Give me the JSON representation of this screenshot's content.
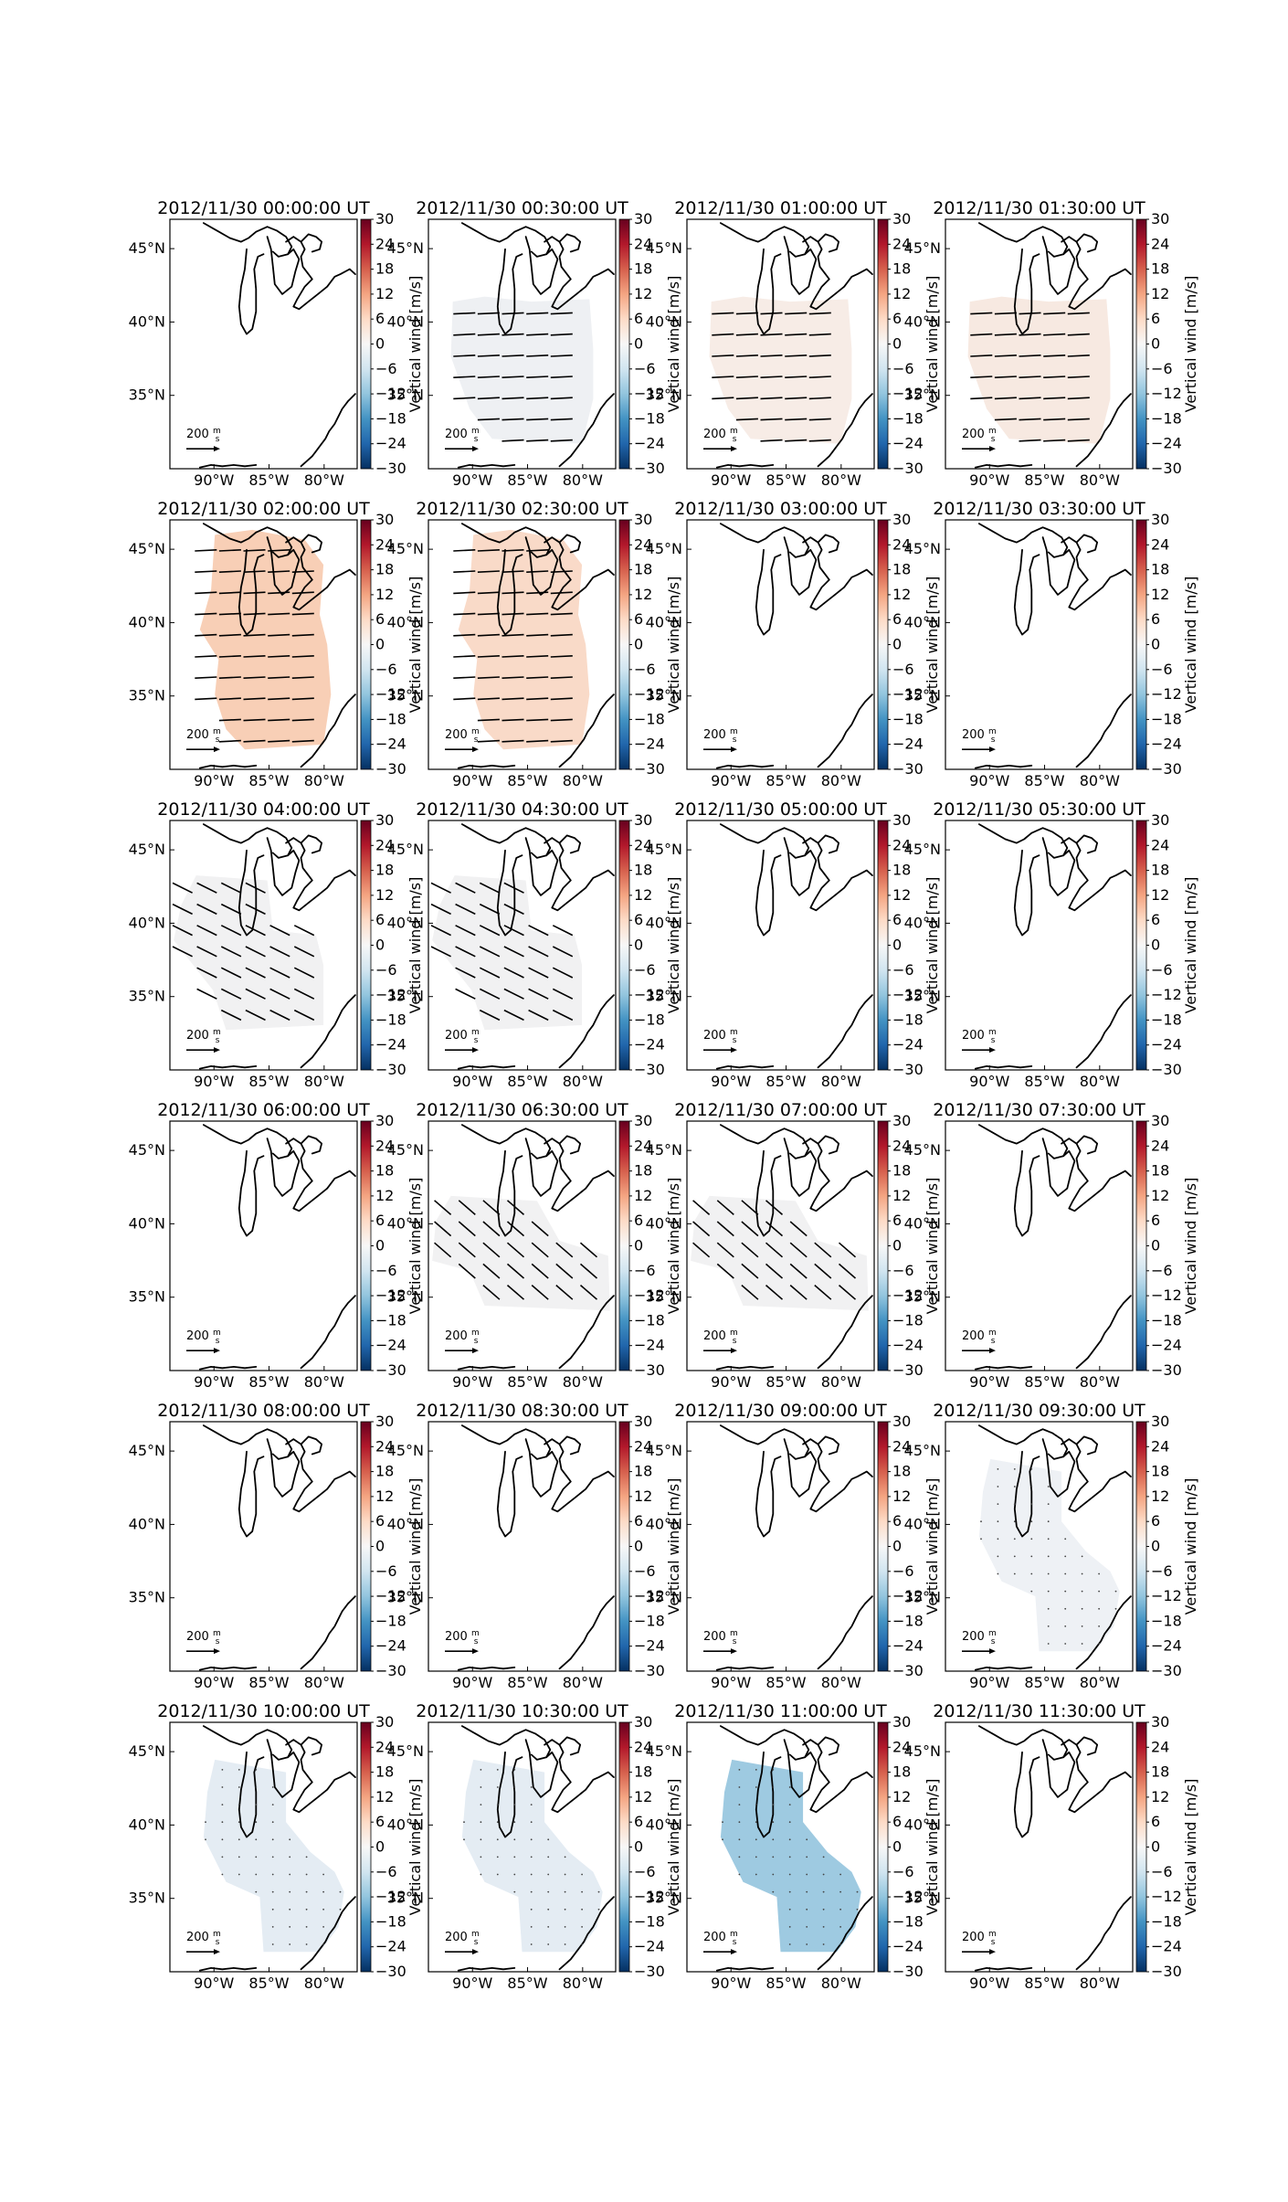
{
  "figure": {
    "colorbar": {
      "label": "Vertical wind [m/s]",
      "ticks": [
        "30",
        "24",
        "18",
        "12",
        "6",
        "0",
        "−6",
        "−12",
        "−18",
        "−24",
        "−30"
      ],
      "range": [
        -30,
        30
      ],
      "colormap": "RdBu_r",
      "colors": [
        "#053061",
        "#2166ac",
        "#4393c3",
        "#92c5de",
        "#d1e5f0",
        "#f7f7f7",
        "#fddbc7",
        "#f4a582",
        "#d6604d",
        "#b2182b",
        "#67001f"
      ]
    },
    "map_ticks": {
      "lon": [
        "90°W",
        "85°W",
        "80°W"
      ],
      "lat": [
        "45°N",
        "40°N",
        "35°N"
      ]
    },
    "vector_key": {
      "value": "200",
      "unit_num": "m",
      "unit_den": "s"
    },
    "panels": [
      {
        "title": "2012/11/30 00:00:00 UT",
        "fill": null,
        "vectors": null
      },
      {
        "title": "2012/11/30 00:30:00 UT",
        "fill": "#eef0f3",
        "vectors": "west"
      },
      {
        "title": "2012/11/30 01:00:00 UT",
        "fill": "#f7ece6",
        "vectors": "west"
      },
      {
        "title": "2012/11/30 01:30:00 UT",
        "fill": "#f7e9e1",
        "vectors": "west"
      },
      {
        "title": "2012/11/30 02:00:00 UT",
        "fill": "#f8cfb6",
        "vectors": "west"
      },
      {
        "title": "2012/11/30 02:30:00 UT",
        "fill": "#f9dac8",
        "vectors": "west"
      },
      {
        "title": "2012/11/30 03:00:00 UT",
        "fill": null,
        "vectors": null
      },
      {
        "title": "2012/11/30 03:30:00 UT",
        "fill": null,
        "vectors": null
      },
      {
        "title": "2012/11/30 04:00:00 UT",
        "fill": "#f1f1f2",
        "vectors": "nw"
      },
      {
        "title": "2012/11/30 04:30:00 UT",
        "fill": "#f1f1f2",
        "vectors": "nw"
      },
      {
        "title": "2012/11/30 05:00:00 UT",
        "fill": null,
        "vectors": null
      },
      {
        "title": "2012/11/30 05:30:00 UT",
        "fill": null,
        "vectors": null
      },
      {
        "title": "2012/11/30 06:00:00 UT",
        "fill": null,
        "vectors": null
      },
      {
        "title": "2012/11/30 06:30:00 UT",
        "fill": "#f1f1f2",
        "vectors": "nw2"
      },
      {
        "title": "2012/11/30 07:00:00 UT",
        "fill": "#f1f1f2",
        "vectors": "nw2"
      },
      {
        "title": "2012/11/30 07:30:00 UT",
        "fill": null,
        "vectors": null
      },
      {
        "title": "2012/11/30 08:00:00 UT",
        "fill": null,
        "vectors": null
      },
      {
        "title": "2012/11/30 08:30:00 UT",
        "fill": null,
        "vectors": null
      },
      {
        "title": "2012/11/30 09:00:00 UT",
        "fill": null,
        "vectors": null
      },
      {
        "title": "2012/11/30 09:30:00 UT",
        "fill": "#eef1f5",
        "vectors": "dots"
      },
      {
        "title": "2012/11/30 10:00:00 UT",
        "fill": "#e4ecf3",
        "vectors": "dots"
      },
      {
        "title": "2012/11/30 10:30:00 UT",
        "fill": "#e4ecf3",
        "vectors": "dots"
      },
      {
        "title": "2012/11/30 11:00:00 UT",
        "fill": "#9ecae1",
        "vectors": "dots"
      },
      {
        "title": "2012/11/30 11:30:00 UT",
        "fill": null,
        "vectors": null
      }
    ]
  }
}
